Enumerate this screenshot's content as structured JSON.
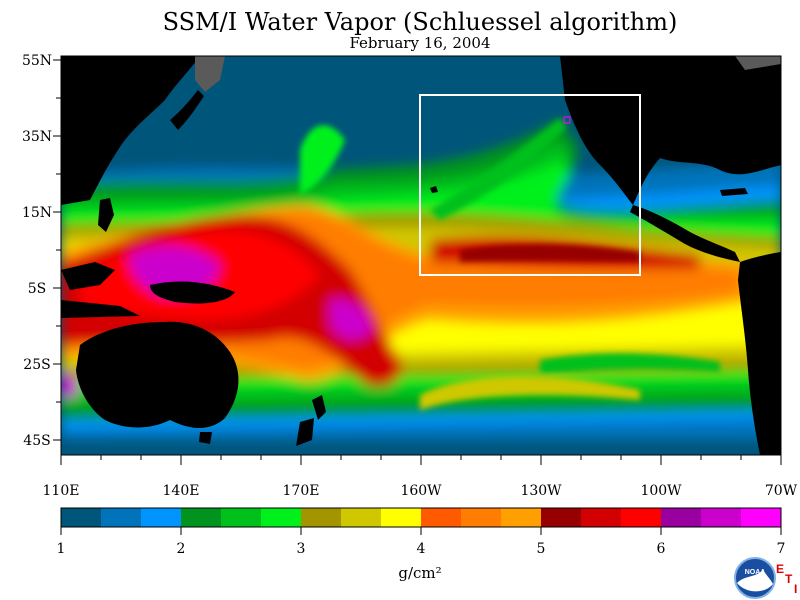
{
  "header": {
    "title": "SSM/I Water Vapor (Schluessel algorithm)",
    "date": "February 16, 2004"
  },
  "map": {
    "lat_labels": [
      "55N",
      "35N",
      "15N",
      "5S",
      "25S",
      "45S"
    ],
    "lon_labels": [
      "110E",
      "140E",
      "170E",
      "160W",
      "130W",
      "100W",
      "70W"
    ],
    "land_color": "#000000",
    "ice_color": "#5a5a5a"
  },
  "colorbar": {
    "unit": "g/cm²",
    "tick_labels": [
      "1",
      "2",
      "3",
      "4",
      "5",
      "6",
      "7"
    ],
    "colors": [
      "#00557a",
      "#0073ba",
      "#0094ff",
      "#00941e",
      "#00c01c",
      "#00f01c",
      "#a29500",
      "#cfc800",
      "#ffff00",
      "#ff5a00",
      "#ff7d00",
      "#ffa000",
      "#960000",
      "#d20000",
      "#ff0000",
      "#9a00a0",
      "#cc00cc",
      "#ff00ff"
    ]
  },
  "logo": {
    "text": "NOAA",
    "marks": [
      "E",
      "T",
      "I"
    ]
  }
}
